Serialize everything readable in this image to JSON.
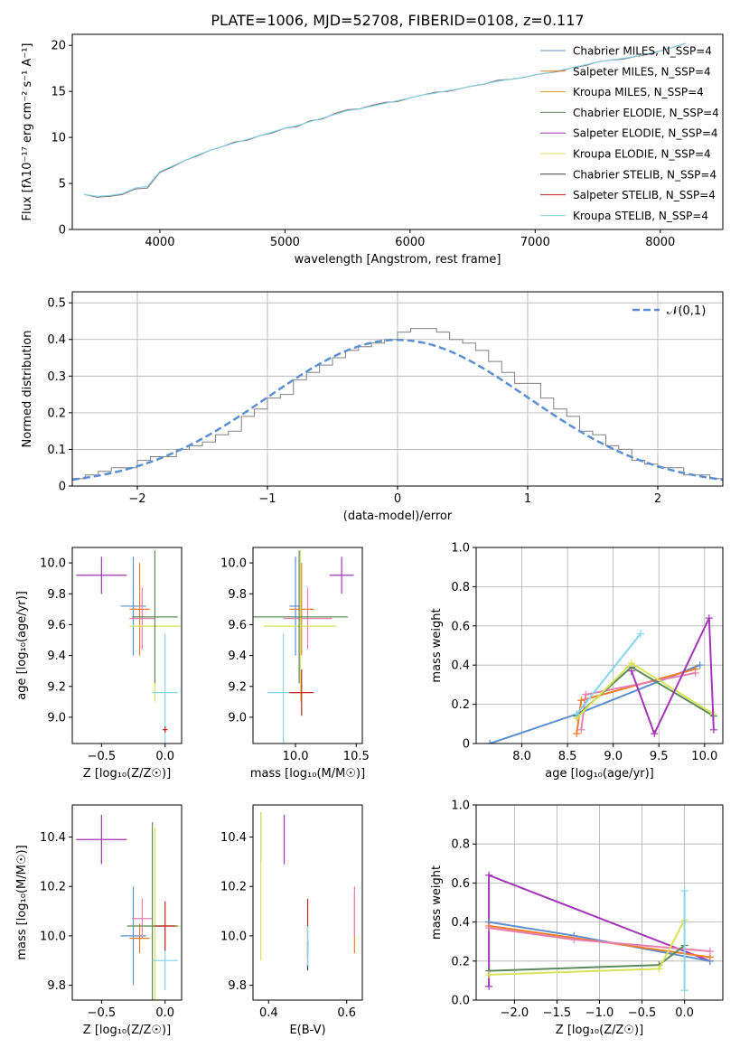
{
  "figure": {
    "title": "PLATE=1006, MJD=52708, FIBERID=0108, z=0.117"
  },
  "legend_labels": [
    "Chabrier MILES, N_SSP=4",
    "Salpeter MILES, N_SSP=4",
    "Kroupa MILES, N_SSP=4",
    "Chabrier ELODIE, N_SSP=4",
    "Salpeter ELODIE, N_SSP=4",
    "Kroupa ELODIE, N_SSP=4",
    "Chabrier STELIB, N_SSP=4",
    "Salpeter STELIB, N_SSP=4",
    "Kroupa STELIB, N_SSP=4"
  ],
  "colors": [
    "#5b8fd0",
    "#f07e2b",
    "#c8a21a",
    "#5d8a5a",
    "#a336b8",
    "#d7e45a",
    "#3f3f3f",
    "#c22222",
    "#87d4e8"
  ],
  "chart_data": [
    {
      "type": "line",
      "panel": "spectrum",
      "title": "PLATE=1006, MJD=52708, FIBERID=0108, z=0.117",
      "xlabel": "wavelength [Angstrom, rest frame]",
      "ylabel": "Flux [fλ10⁻¹⁷ erg cm⁻² s⁻¹ A⁻¹]",
      "xlim": [
        3300,
        8500
      ],
      "ylim": [
        0,
        21.2
      ],
      "xticks": [
        4000,
        5000,
        6000,
        7000,
        8000
      ],
      "yticks": [
        0,
        5,
        10,
        15,
        20
      ],
      "grid": false,
      "legend_position": "upper-right",
      "series": [
        {
          "name": "data",
          "color": "#808080",
          "x": [
            3400,
            3500,
            3600,
            3700,
            3800,
            3900,
            4000,
            4100,
            4200,
            4300,
            4400,
            4500,
            4600,
            4700,
            4800,
            4900,
            5000,
            5100,
            5200,
            5300,
            5400,
            5500,
            5600,
            5700,
            5800,
            5900,
            6000,
            6100,
            6200,
            6300,
            6400,
            6500,
            6600,
            6700,
            6800,
            6900,
            7000,
            7100,
            7200,
            7300,
            7400,
            7500,
            7600,
            7700,
            7800,
            7900,
            8000,
            8100,
            8200
          ],
          "y": [
            3.8,
            3.5,
            3.6,
            3.8,
            4.4,
            4.5,
            6.2,
            6.8,
            7.5,
            8.0,
            8.6,
            9.0,
            9.5,
            9.7,
            10.2,
            10.5,
            11.0,
            11.2,
            11.8,
            12.0,
            12.6,
            13.0,
            13.1,
            13.5,
            13.8,
            13.9,
            14.3,
            14.6,
            14.9,
            15.0,
            15.3,
            15.6,
            15.8,
            16.2,
            16.3,
            16.5,
            16.8,
            17.0,
            17.2,
            17.6,
            17.8,
            18.2,
            18.4,
            18.5,
            18.8,
            19.0,
            19.4,
            19.8,
            20.2
          ]
        },
        {
          "name": "model",
          "color": "#87d4e8",
          "x": [
            3400,
            3500,
            3600,
            3700,
            3800,
            3900,
            4000,
            4100,
            4200,
            4300,
            4400,
            4500,
            4600,
            4700,
            4800,
            4900,
            5000,
            5100,
            5200,
            5300,
            5400,
            5500,
            5600,
            5700,
            5800,
            5900,
            6000,
            6100,
            6200,
            6300,
            6400,
            6500,
            6600,
            6700,
            6800,
            6900,
            7000,
            7100,
            7200,
            7300,
            7400,
            7500,
            7600,
            7700,
            7800,
            7900,
            8000,
            8100,
            8200
          ],
          "y": [
            3.8,
            3.6,
            3.7,
            3.9,
            4.5,
            4.7,
            6.3,
            6.9,
            7.5,
            8.1,
            8.6,
            9.0,
            9.4,
            9.8,
            10.2,
            10.6,
            11.0,
            11.3,
            11.7,
            12.1,
            12.5,
            12.9,
            13.1,
            13.4,
            13.7,
            14.0,
            14.3,
            14.6,
            14.8,
            15.1,
            15.3,
            15.6,
            15.8,
            16.1,
            16.3,
            16.5,
            16.8,
            17.0,
            17.3,
            17.6,
            17.9,
            18.2,
            18.4,
            18.6,
            18.8,
            19.1,
            19.4,
            19.8,
            20.2
          ]
        }
      ]
    },
    {
      "type": "histogram",
      "panel": "residuals",
      "xlabel": "(data-model)/error",
      "ylabel": "Normed distribution",
      "xlim": [
        -2.5,
        2.5
      ],
      "ylim": [
        0,
        0.53
      ],
      "xticks": [
        -2,
        -1,
        0,
        1,
        2
      ],
      "yticks": [
        0.0,
        0.1,
        0.2,
        0.3,
        0.4,
        0.5
      ],
      "grid": true,
      "legend_position": "upper-right",
      "legend": "𝒩(0,1)",
      "bins": [
        -2.5,
        -2.4,
        -2.3,
        -2.2,
        -2.1,
        -2.0,
        -1.9,
        -1.8,
        -1.7,
        -1.6,
        -1.5,
        -1.4,
        -1.3,
        -1.2,
        -1.1,
        -1.0,
        -0.9,
        -0.8,
        -0.7,
        -0.6,
        -0.5,
        -0.4,
        -0.3,
        -0.2,
        -0.1,
        0.0,
        0.1,
        0.2,
        0.3,
        0.4,
        0.5,
        0.6,
        0.7,
        0.8,
        0.9,
        1.0,
        1.1,
        1.2,
        1.3,
        1.4,
        1.5,
        1.6,
        1.7,
        1.8,
        1.9,
        2.0,
        2.1,
        2.2,
        2.3,
        2.4
      ],
      "hist": [
        0.02,
        0.03,
        0.04,
        0.05,
        0.05,
        0.07,
        0.08,
        0.08,
        0.1,
        0.11,
        0.12,
        0.14,
        0.15,
        0.19,
        0.21,
        0.24,
        0.25,
        0.29,
        0.31,
        0.33,
        0.35,
        0.37,
        0.38,
        0.39,
        0.4,
        0.42,
        0.43,
        0.43,
        0.42,
        0.4,
        0.39,
        0.37,
        0.34,
        0.31,
        0.28,
        0.28,
        0.24,
        0.21,
        0.19,
        0.15,
        0.14,
        0.11,
        0.1,
        0.07,
        0.06,
        0.05,
        0.05,
        0.03,
        0.03,
        0.02
      ],
      "normal_curve": {
        "name": "𝒩(0,1)",
        "color": "#5b8fd0"
      }
    },
    {
      "type": "errorbar",
      "panel": "age-vs-Z",
      "xlabel": "Z [log₁₀(Z/Z☉)]",
      "ylabel": "age  [log₁₀(age/yr)]",
      "xlim": [
        -0.73,
        0.13
      ],
      "ylim": [
        8.83,
        10.1
      ],
      "xticks": [
        -0.5,
        0.0
      ],
      "yticks": [
        9.0,
        9.2,
        9.4,
        9.6,
        9.8,
        10.0
      ],
      "points": [
        {
          "x": -0.5,
          "y": 9.92,
          "xerr": 0.2,
          "yerr": 0.12,
          "color": "#a336b8"
        },
        {
          "x": -0.25,
          "y": 9.72,
          "xerr": 0.1,
          "yerr": 0.32,
          "color": "#5b8fd0"
        },
        {
          "x": -0.2,
          "y": 9.7,
          "xerr": 0.08,
          "yerr": 0.3,
          "color": "#f07e2b"
        },
        {
          "x": -0.18,
          "y": 9.64,
          "xerr": 0.1,
          "yerr": 0.2,
          "color": "#e87fb0"
        },
        {
          "x": -0.08,
          "y": 9.59,
          "xerr": 0.2,
          "yerr": 0.49,
          "color": "#d7e45a"
        },
        {
          "x": -0.08,
          "y": 9.65,
          "xerr": 0.18,
          "yerr": 0.43,
          "color": "#5d8a5a"
        },
        {
          "x": 0.0,
          "y": 9.16,
          "xerr": 0.1,
          "yerr": 0.38,
          "color": "#87d4e8"
        },
        {
          "x": 0.0,
          "y": 8.92,
          "xerr": 0.02,
          "yerr": 0.02,
          "color": "#c22222"
        }
      ]
    },
    {
      "type": "errorbar",
      "panel": "age-vs-mass",
      "xlabel": "mass [log₁₀(M/M☉)]",
      "ylabel": "",
      "xlim": [
        9.65,
        10.55
      ],
      "ylim": [
        8.83,
        10.1
      ],
      "xticks": [
        10.0,
        10.5
      ],
      "yticks": [
        9.0,
        9.2,
        9.4,
        9.6,
        9.8,
        10.0
      ],
      "points": [
        {
          "x": 10.38,
          "y": 9.92,
          "xerr": 0.1,
          "yerr": 0.12,
          "color": "#a336b8"
        },
        {
          "x": 10.0,
          "y": 9.72,
          "xerr": 0.05,
          "yerr": 0.32,
          "color": "#5b8fd0"
        },
        {
          "x": 10.05,
          "y": 9.7,
          "xerr": 0.1,
          "yerr": 0.3,
          "color": "#f07e2b"
        },
        {
          "x": 10.1,
          "y": 9.64,
          "xerr": 0.2,
          "yerr": 0.2,
          "color": "#e87fb0"
        },
        {
          "x": 10.04,
          "y": 9.59,
          "xerr": 0.3,
          "yerr": 0.49,
          "color": "#d7e45a"
        },
        {
          "x": 10.03,
          "y": 9.65,
          "xerr": 0.4,
          "yerr": 0.43,
          "color": "#5d8a5a"
        },
        {
          "x": 9.9,
          "y": 9.16,
          "xerr": 0.13,
          "yerr": 0.38,
          "color": "#87d4e8"
        },
        {
          "x": 10.05,
          "y": 9.16,
          "xerr": 0.1,
          "yerr": 0.15,
          "color": "#c22222"
        }
      ]
    },
    {
      "type": "line",
      "panel": "weight-vs-age",
      "xlabel": "age  [log₁₀(age/yr)]",
      "ylabel": "mass weight",
      "xlim": [
        7.5,
        10.2
      ],
      "ylim": [
        0,
        1.0
      ],
      "xticks": [
        8.0,
        8.5,
        9.0,
        9.5,
        10.0
      ],
      "yticks": [
        0.0,
        0.2,
        0.4,
        0.6,
        0.8,
        1.0
      ],
      "grid": true,
      "series": [
        {
          "color": "#5b8fd0",
          "x": [
            7.65,
            8.6,
            9.95
          ],
          "y": [
            0.0,
            0.15,
            0.4
          ]
        },
        {
          "color": "#f07e2b",
          "x": [
            8.6,
            8.65,
            9.9
          ],
          "y": [
            0.05,
            0.22,
            0.38
          ]
        },
        {
          "color": "#e87fb0",
          "x": [
            8.65,
            8.7,
            9.9
          ],
          "y": [
            0.07,
            0.25,
            0.36
          ]
        },
        {
          "color": "#5d8a5a",
          "x": [
            8.6,
            9.2,
            10.1
          ],
          "y": [
            0.14,
            0.39,
            0.14
          ]
        },
        {
          "color": "#d7e45a",
          "x": [
            8.6,
            9.2,
            10.1
          ],
          "y": [
            0.13,
            0.41,
            0.15
          ]
        },
        {
          "color": "#a336b8",
          "x": [
            9.2,
            9.45,
            10.05,
            10.1
          ],
          "y": [
            0.37,
            0.05,
            0.64,
            0.07
          ]
        },
        {
          "color": "#87d4e8",
          "x": [
            8.6,
            9.3
          ],
          "y": [
            0.15,
            0.56
          ]
        }
      ]
    },
    {
      "type": "errorbar",
      "panel": "mass-vs-Z",
      "xlabel": "Z [log₁₀(Z/Z☉)]",
      "ylabel": "mass [log₁₀(M/M☉)]",
      "xlim": [
        -0.73,
        0.13
      ],
      "ylim": [
        9.74,
        10.53
      ],
      "xticks": [
        -0.5,
        0.0
      ],
      "yticks": [
        9.8,
        10.0,
        10.2,
        10.4
      ],
      "points": [
        {
          "x": -0.5,
          "y": 10.39,
          "xerr": 0.2,
          "yerr": 0.1,
          "color": "#a336b8"
        },
        {
          "x": -0.25,
          "y": 10.0,
          "xerr": 0.1,
          "yerr": 0.2,
          "color": "#5b8fd0"
        },
        {
          "x": -0.2,
          "y": 9.99,
          "xerr": 0.08,
          "yerr": 0.06,
          "color": "#f07e2b"
        },
        {
          "x": -0.18,
          "y": 10.07,
          "xerr": 0.08,
          "yerr": 0.08,
          "color": "#e87fb0"
        },
        {
          "x": -0.08,
          "y": 10.04,
          "xerr": 0.2,
          "yerr": 0.4,
          "color": "#d7e45a"
        },
        {
          "x": -0.1,
          "y": 10.04,
          "xerr": 0.2,
          "yerr": 0.42,
          "color": "#5d8a5a"
        },
        {
          "x": 0.0,
          "y": 9.9,
          "xerr": 0.1,
          "yerr": 0.12,
          "color": "#87d4e8"
        },
        {
          "x": 0.0,
          "y": 10.04,
          "xerr": 0.08,
          "yerr": 0.1,
          "color": "#c22222"
        }
      ]
    },
    {
      "type": "errorbar",
      "panel": "mass-vs-EBV",
      "xlabel": "E(B-V)",
      "ylabel": "",
      "xlim": [
        0.36,
        0.64
      ],
      "ylim": [
        9.74,
        10.53
      ],
      "xticks": [
        0.4,
        0.6
      ],
      "yticks": [
        9.8,
        10.0,
        10.2,
        10.4
      ],
      "points": [
        {
          "x": 0.38,
          "y": 10.4,
          "xerr": 0.0,
          "yerr": 0.1,
          "color": "#5d8a5a"
        },
        {
          "x": 0.38,
          "y": 10.2,
          "xerr": 0.0,
          "yerr": 0.3,
          "color": "#d7e45a"
        },
        {
          "x": 0.44,
          "y": 10.39,
          "xerr": 0.0,
          "yerr": 0.1,
          "color": "#a336b8"
        },
        {
          "x": 0.5,
          "y": 10.03,
          "xerr": 0.0,
          "yerr": 0.12,
          "color": "#c22222"
        },
        {
          "x": 0.5,
          "y": 9.92,
          "xerr": 0.0,
          "yerr": 0.06,
          "color": "#3f3f3f"
        },
        {
          "x": 0.5,
          "y": 9.96,
          "xerr": 0.0,
          "yerr": 0.08,
          "color": "#87d4e8"
        },
        {
          "x": 0.62,
          "y": 10.05,
          "xerr": 0.0,
          "yerr": 0.12,
          "color": "#f07e2b"
        },
        {
          "x": 0.62,
          "y": 10.1,
          "xerr": 0.0,
          "yerr": 0.1,
          "color": "#e87fb0"
        }
      ]
    },
    {
      "type": "line",
      "panel": "weight-vs-Z",
      "xlabel": "Z [log₁₀(Z/Z☉)]",
      "ylabel": "mass weight",
      "xlim": [
        -2.45,
        0.45
      ],
      "ylim": [
        0,
        1.0
      ],
      "xticks": [
        -2.0,
        -1.5,
        -1.0,
        -0.5,
        0.0
      ],
      "yticks": [
        0.0,
        0.2,
        0.4,
        0.6,
        0.8,
        1.0
      ],
      "grid": true,
      "series": [
        {
          "color": "#a336b8",
          "x": [
            -2.3,
            -2.3,
            0.3
          ],
          "y": [
            0.07,
            0.64,
            0.2
          ]
        },
        {
          "color": "#5b8fd0",
          "x": [
            -2.3,
            -1.3,
            0.3
          ],
          "y": [
            0.4,
            0.33,
            0.2
          ]
        },
        {
          "color": "#f07e2b",
          "x": [
            -2.3,
            0.3
          ],
          "y": [
            0.38,
            0.22
          ]
        },
        {
          "color": "#e87fb0",
          "x": [
            -2.3,
            -1.3,
            0.3
          ],
          "y": [
            0.37,
            0.31,
            0.25
          ]
        },
        {
          "color": "#5d8a5a",
          "x": [
            -2.3,
            -0.3,
            0.0
          ],
          "y": [
            0.15,
            0.18,
            0.28
          ]
        },
        {
          "color": "#d7e45a",
          "x": [
            -2.3,
            -0.3,
            0.0
          ],
          "y": [
            0.13,
            0.16,
            0.41
          ]
        },
        {
          "color": "#87d4e8",
          "x": [
            0.0,
            0.0
          ],
          "y": [
            0.05,
            0.56
          ]
        }
      ]
    }
  ]
}
